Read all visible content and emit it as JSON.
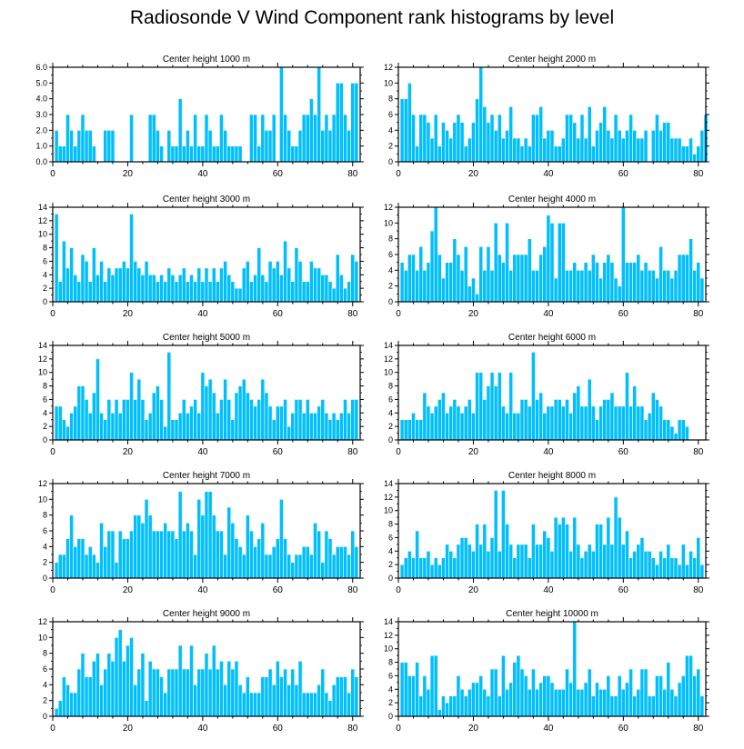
{
  "title": "Radiosonde V Wind Component rank histograms by level",
  "colors": {
    "bar": "#00bfff",
    "bar_edge": "#ffffff",
    "axis": "#000000"
  },
  "chart_data": [
    {
      "type": "bar",
      "title": "Center height 1000 m",
      "x_start": 1,
      "xlim": [
        0,
        82
      ],
      "ylim": [
        0,
        6
      ],
      "yticks": [
        0,
        1,
        2,
        3,
        4,
        5,
        6
      ],
      "ytick_labels": [
        "0.0",
        "1.0",
        "2.0",
        "3.0",
        "4.0",
        "5.0",
        "6.0"
      ],
      "xticks": [
        0,
        20,
        40,
        60,
        80
      ],
      "values": [
        2,
        1,
        1,
        3,
        2,
        1,
        2,
        3,
        2,
        2,
        1,
        0,
        0,
        2,
        2,
        2,
        0,
        0,
        0,
        0,
        3,
        0,
        0,
        0,
        0,
        3,
        3,
        2,
        1,
        0,
        2,
        1,
        1,
        4,
        1,
        2,
        1,
        3,
        1,
        1,
        3,
        2,
        1,
        1,
        3,
        2,
        1,
        1,
        1,
        1,
        0,
        0,
        3,
        3,
        1,
        3,
        2,
        2,
        3,
        0,
        6,
        3,
        2,
        1,
        1,
        2,
        3,
        3,
        4,
        3,
        6,
        2,
        3,
        2,
        3,
        5,
        5,
        3,
        2,
        5,
        5
      ]
    },
    {
      "type": "bar",
      "title": "Center height 2000 m",
      "x_start": 1,
      "xlim": [
        0,
        82
      ],
      "ylim": [
        0,
        12
      ],
      "yticks": [
        0,
        2,
        4,
        6,
        8,
        10,
        12
      ],
      "ytick_labels": [
        "0",
        "2",
        "4",
        "6",
        "8",
        "10",
        "12"
      ],
      "xticks": [
        0,
        20,
        40,
        60,
        80
      ],
      "values": [
        8,
        8,
        10,
        6,
        2,
        6,
        6,
        5,
        3,
        6,
        2,
        5,
        4,
        3,
        5,
        6,
        5,
        2,
        3,
        5,
        8,
        12,
        7,
        5,
        6,
        4,
        6,
        3,
        4,
        7,
        3,
        3,
        2,
        3,
        2,
        6,
        6,
        7,
        3,
        4,
        4,
        2,
        2,
        3,
        6,
        6,
        5,
        3,
        6,
        3,
        7,
        2,
        4,
        5,
        7,
        4,
        3,
        6,
        4,
        3,
        4,
        6,
        4,
        3,
        3,
        4,
        0,
        4,
        6,
        4,
        5,
        5,
        3,
        3,
        3,
        2,
        2,
        3,
        1,
        2,
        4,
        6
      ]
    },
    {
      "type": "bar",
      "title": "Center height 3000 m",
      "x_start": 1,
      "xlim": [
        0,
        82
      ],
      "ylim": [
        0,
        14
      ],
      "yticks": [
        0,
        2,
        4,
        6,
        8,
        10,
        12,
        14
      ],
      "ytick_labels": [
        "0",
        "2",
        "4",
        "6",
        "8",
        "10",
        "12",
        "14"
      ],
      "xticks": [
        0,
        20,
        40,
        60,
        80
      ],
      "values": [
        13,
        3,
        9,
        5,
        8,
        4,
        3,
        7,
        6,
        3,
        8,
        4,
        6,
        3,
        5,
        4,
        5,
        5,
        6,
        5,
        13,
        6,
        5,
        4,
        6,
        4,
        4,
        3,
        4,
        3,
        5,
        4,
        3,
        4,
        5,
        3,
        4,
        3,
        5,
        3,
        5,
        3,
        5,
        3,
        5,
        6,
        4,
        3,
        2,
        2,
        5,
        6,
        3,
        4,
        8,
        4,
        3,
        6,
        5,
        6,
        4,
        9,
        5,
        3,
        8,
        6,
        3,
        3,
        6,
        5,
        5,
        4,
        4,
        3,
        2,
        7,
        4,
        2,
        3,
        7,
        6
      ]
    },
    {
      "type": "bar",
      "title": "Center height 4000 m",
      "x_start": 1,
      "xlim": [
        0,
        82
      ],
      "ylim": [
        0,
        12
      ],
      "yticks": [
        0,
        2,
        4,
        6,
        8,
        10,
        12
      ],
      "ytick_labels": [
        "0",
        "2",
        "4",
        "6",
        "8",
        "10",
        "12"
      ],
      "xticks": [
        0,
        20,
        40,
        60,
        80
      ],
      "values": [
        5,
        4,
        6,
        6,
        4,
        7,
        4,
        5,
        9,
        12,
        6,
        3,
        5,
        5,
        8,
        6,
        4,
        7,
        2,
        3,
        1,
        7,
        4,
        7,
        4,
        10,
        6,
        5,
        10,
        4,
        6,
        6,
        6,
        6,
        8,
        4,
        4,
        6,
        7,
        11,
        10,
        3,
        10,
        10,
        4,
        4,
        5,
        4,
        4,
        5,
        4,
        6,
        5,
        3,
        5,
        6,
        5,
        3,
        2,
        12,
        5,
        5,
        5,
        6,
        4,
        5,
        4,
        4,
        3,
        7,
        4,
        4,
        3,
        4,
        6,
        6,
        6,
        8,
        4,
        5,
        3
      ]
    },
    {
      "type": "bar",
      "title": "Center height 5000 m",
      "x_start": 1,
      "xlim": [
        0,
        82
      ],
      "ylim": [
        0,
        14
      ],
      "yticks": [
        0,
        2,
        4,
        6,
        8,
        10,
        12,
        14
      ],
      "ytick_labels": [
        "0",
        "2",
        "4",
        "6",
        "8",
        "10",
        "12",
        "14"
      ],
      "xticks": [
        0,
        20,
        40,
        60,
        80
      ],
      "values": [
        5,
        5,
        3,
        2,
        4,
        5,
        8,
        8,
        6,
        4,
        7,
        12,
        4,
        3,
        6,
        4,
        6,
        4,
        6,
        6,
        10,
        6,
        9,
        6,
        3,
        4,
        7,
        8,
        6,
        2,
        13,
        3,
        3,
        4,
        6,
        4,
        5,
        6,
        4,
        10,
        8,
        9,
        7,
        4,
        6,
        9,
        6,
        3,
        7,
        8,
        9,
        7,
        6,
        5,
        6,
        9,
        7,
        5,
        3,
        5,
        5,
        6,
        2,
        4,
        6,
        6,
        4,
        6,
        4,
        4,
        5,
        6,
        4,
        3,
        4,
        3,
        4,
        6,
        4,
        6,
        6
      ]
    },
    {
      "type": "bar",
      "title": "Center height 6000 m",
      "x_start": 1,
      "xlim": [
        0,
        82
      ],
      "ylim": [
        0,
        14
      ],
      "yticks": [
        0,
        2,
        4,
        6,
        8,
        10,
        12,
        14
      ],
      "ytick_labels": [
        "0",
        "2",
        "4",
        "6",
        "8",
        "10",
        "12",
        "14"
      ],
      "xticks": [
        0,
        20,
        40,
        60,
        80
      ],
      "values": [
        3,
        3,
        3,
        4,
        3,
        3,
        7,
        5,
        4,
        5,
        6,
        7,
        4,
        5,
        6,
        5,
        4,
        5,
        6,
        4,
        10,
        10,
        6,
        8,
        10,
        8,
        10,
        5,
        4,
        10,
        4,
        4,
        6,
        6,
        5,
        13,
        6,
        7,
        4,
        5,
        5,
        6,
        6,
        5,
        6,
        4,
        7,
        8,
        5,
        5,
        9,
        5,
        3,
        5,
        6,
        6,
        7,
        5,
        5,
        5,
        10,
        5,
        8,
        5,
        5,
        3,
        4,
        7,
        6,
        5,
        3,
        3,
        2,
        1,
        3,
        3,
        2
      ]
    },
    {
      "type": "bar",
      "title": "Center height 7000 m",
      "x_start": 1,
      "xlim": [
        0,
        82
      ],
      "ylim": [
        0,
        12
      ],
      "yticks": [
        0,
        2,
        4,
        6,
        8,
        10,
        12
      ],
      "ytick_labels": [
        "0",
        "2",
        "4",
        "6",
        "8",
        "10",
        "12"
      ],
      "xticks": [
        0,
        20,
        40,
        60,
        80
      ],
      "values": [
        2,
        3,
        3,
        5,
        8,
        4,
        5,
        5,
        3,
        4,
        3,
        2,
        7,
        4,
        6,
        6,
        2,
        6,
        5,
        5,
        6,
        8,
        8,
        7,
        10,
        8,
        6,
        6,
        6,
        7,
        6,
        6,
        5,
        11,
        6,
        7,
        6,
        3,
        10,
        8,
        11,
        11,
        8,
        6,
        6,
        3,
        9,
        7,
        5,
        4,
        3,
        8,
        6,
        4,
        5,
        7,
        3,
        3,
        4,
        5,
        10,
        5,
        3,
        2,
        3,
        3,
        4,
        4,
        3,
        7,
        6,
        2,
        6,
        5,
        3,
        4,
        4,
        4,
        3,
        6,
        4
      ]
    },
    {
      "type": "bar",
      "title": "Center height 8000 m",
      "x_start": 1,
      "xlim": [
        0,
        82
      ],
      "ylim": [
        0,
        14
      ],
      "yticks": [
        0,
        2,
        4,
        6,
        8,
        10,
        12,
        14
      ],
      "ytick_labels": [
        "0",
        "2",
        "4",
        "6",
        "8",
        "10",
        "12",
        "14"
      ],
      "xticks": [
        0,
        20,
        40,
        60,
        80
      ],
      "values": [
        2,
        3,
        4,
        3,
        7,
        3,
        3,
        4,
        2,
        3,
        2,
        3,
        5,
        4,
        3,
        5,
        6,
        6,
        5,
        4,
        8,
        5,
        8,
        4,
        6,
        13,
        4,
        13,
        8,
        5,
        3,
        5,
        5,
        5,
        3,
        8,
        5,
        5,
        7,
        6,
        4,
        9,
        8,
        9,
        8,
        4,
        9,
        5,
        3,
        4,
        5,
        4,
        8,
        8,
        5,
        9,
        5,
        12,
        9,
        5,
        7,
        3,
        4,
        5,
        6,
        4,
        4,
        3,
        2,
        4,
        3,
        5,
        3,
        3,
        2,
        5,
        2,
        4,
        3,
        6,
        2
      ]
    },
    {
      "type": "bar",
      "title": "Center height 9000 m",
      "x_start": 1,
      "xlim": [
        0,
        82
      ],
      "ylim": [
        0,
        12
      ],
      "yticks": [
        0,
        2,
        4,
        6,
        8,
        10,
        12
      ],
      "ytick_labels": [
        "0",
        "2",
        "4",
        "6",
        "8",
        "10",
        "12"
      ],
      "xticks": [
        0,
        20,
        40,
        60,
        80
      ],
      "values": [
        1,
        2,
        5,
        4,
        3,
        3,
        6,
        8,
        5,
        5,
        7,
        8,
        4,
        6,
        8,
        7,
        10,
        11,
        7,
        9,
        10,
        4,
        6,
        8,
        2,
        7,
        6,
        6,
        5,
        3,
        6,
        6,
        6,
        9,
        6,
        6,
        9,
        4,
        6,
        6,
        8,
        6,
        9,
        6,
        7,
        4,
        7,
        6,
        7,
        4,
        3,
        5,
        3,
        3,
        3,
        5,
        5,
        6,
        4,
        7,
        5,
        6,
        4,
        6,
        4,
        7,
        3,
        3,
        3,
        3,
        4,
        6,
        3,
        2,
        4,
        5,
        5,
        5,
        3,
        6,
        5
      ]
    },
    {
      "type": "bar",
      "title": "Center height 10000 m",
      "x_start": 1,
      "xlim": [
        0,
        82
      ],
      "ylim": [
        0,
        14
      ],
      "yticks": [
        0,
        2,
        4,
        6,
        8,
        10,
        12,
        14
      ],
      "ytick_labels": [
        "0",
        "2",
        "4",
        "6",
        "8",
        "10",
        "12",
        "14"
      ],
      "xticks": [
        0,
        20,
        40,
        60,
        80
      ],
      "values": [
        8,
        8,
        6,
        6,
        8,
        3,
        6,
        4,
        9,
        9,
        1,
        3,
        2,
        3,
        3,
        6,
        4,
        3,
        4,
        5,
        5,
        6,
        4,
        3,
        7,
        7,
        3,
        9,
        4,
        5,
        8,
        9,
        7,
        6,
        4,
        7,
        4,
        5,
        6,
        6,
        5,
        4,
        4,
        4,
        7,
        5,
        14,
        4,
        4,
        5,
        7,
        3,
        5,
        4,
        4,
        6,
        3,
        3,
        6,
        4,
        5,
        7,
        3,
        4,
        7,
        7,
        3,
        3,
        6,
        6,
        4,
        8,
        4,
        3,
        5,
        6,
        9,
        9,
        6,
        7,
        3
      ]
    }
  ]
}
